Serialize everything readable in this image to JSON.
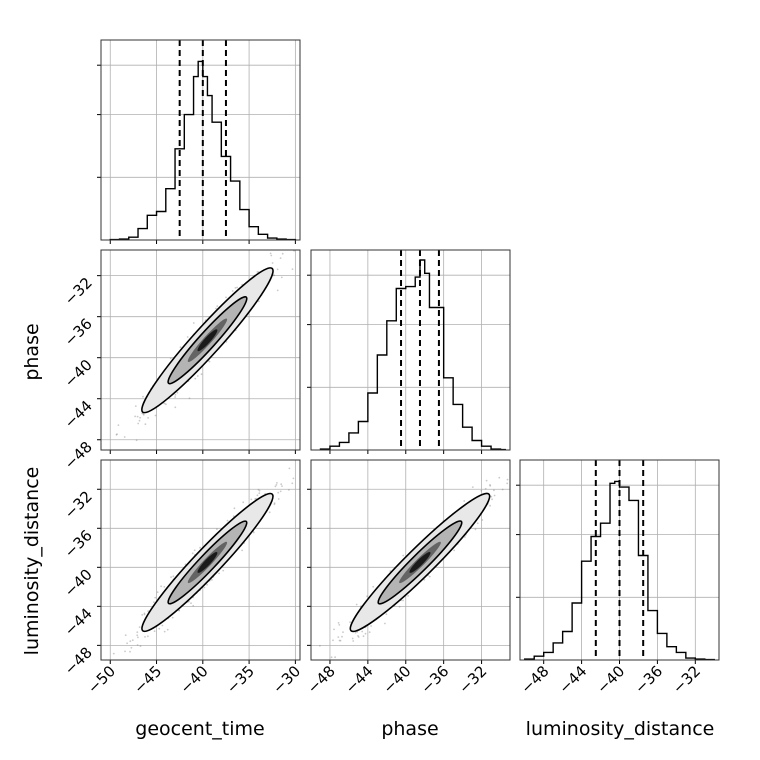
{
  "figure": {
    "type": "corner-plot",
    "colors": {
      "line": "#000000",
      "grid": "#b0b0b0",
      "scatter": "#8a8a8a",
      "contour_fill_levels": [
        "#e8e8e8",
        "#b4b4b4",
        "#646464",
        "#1a1a1a"
      ]
    }
  },
  "chart_data": {
    "type": "corner",
    "parameters": [
      "geocent_time",
      "phase",
      "luminosity_distance"
    ],
    "axes": {
      "geocent_time": {
        "xlim": [
          -51,
          -29.5
        ],
        "ticks": [
          -50,
          -45,
          -40,
          -35,
          -30
        ],
        "tick_labels": [
          "−50",
          "−45",
          "−40",
          "−35",
          "−30"
        ]
      },
      "phase": {
        "xlim": [
          -50,
          -29
        ],
        "ticks": [
          -48,
          -44,
          -40,
          -36,
          -32
        ],
        "tick_labels": [
          "−48",
          "−44",
          "−40",
          "−36",
          "−32"
        ],
        "ylim": [
          -49,
          -29.5
        ]
      },
      "luminosity_distance": {
        "xlim": [
          -50.5,
          -29.5
        ],
        "ticks": [
          -48,
          -44,
          -40,
          -36,
          -32
        ],
        "tick_labels": [
          "−48",
          "−44",
          "−40",
          "−36",
          "−32"
        ],
        "ylim": [
          -49.5,
          -29
        ]
      }
    },
    "histograms": [
      {
        "parameter": "geocent_time",
        "bin_edges": [
          -50,
          -49,
          -48,
          -47,
          -46,
          -45,
          -44,
          -43,
          -42,
          -41,
          -40.5,
          -40,
          -39.5,
          -39,
          -38,
          -37,
          -36,
          -35,
          -34,
          -33,
          -32,
          -31,
          -30
        ],
        "counts": [
          0.002,
          0.005,
          0.015,
          0.06,
          0.13,
          0.15,
          0.27,
          0.48,
          0.66,
          0.86,
          0.94,
          0.86,
          0.76,
          0.62,
          0.44,
          0.31,
          0.16,
          0.07,
          0.03,
          0.01,
          0.005,
          0.002
        ],
        "quantiles": [
          -42.5,
          -40,
          -37.5
        ]
      },
      {
        "parameter": "phase",
        "bin_edges": [
          -49,
          -48,
          -47,
          -46,
          -45,
          -44,
          -43,
          -42,
          -41,
          -40,
          -39,
          -38.5,
          -38,
          -37.5,
          -36,
          -35,
          -34,
          -33,
          -32,
          -31,
          -30,
          -29.5
        ],
        "counts": [
          0.005,
          0.02,
          0.04,
          0.09,
          0.15,
          0.3,
          0.5,
          0.68,
          0.85,
          0.86,
          0.91,
          1.0,
          0.93,
          0.75,
          0.38,
          0.24,
          0.12,
          0.05,
          0.02,
          0.005,
          0.002
        ],
        "quantiles": [
          -40.5,
          -38.5,
          -36.5
        ]
      },
      {
        "parameter": "luminosity_distance",
        "bin_edges": [
          -50,
          -49,
          -48,
          -47,
          -46,
          -45,
          -44,
          -43,
          -42,
          -41,
          -40.5,
          -40,
          -39,
          -38,
          -37,
          -36,
          -35,
          -34,
          -33,
          -32,
          -31,
          -30
        ],
        "counts": [
          0.005,
          0.02,
          0.04,
          0.09,
          0.15,
          0.3,
          0.52,
          0.65,
          0.72,
          0.93,
          0.94,
          0.91,
          0.84,
          0.55,
          0.26,
          0.14,
          0.07,
          0.04,
          0.01,
          0.005,
          0.002
        ],
        "quantiles": [
          -42.5,
          -40,
          -37.5
        ]
      }
    ],
    "pairs": [
      {
        "x": "geocent_time",
        "y": "phase",
        "center": [
          -39.5,
          -38.3
        ],
        "sx": 2.5,
        "sy": 2.5,
        "rho": 0.96
      },
      {
        "x": "geocent_time",
        "y": "luminosity_distance",
        "center": [
          -39.5,
          -39.5
        ],
        "sx": 2.5,
        "sy": 2.5,
        "rho": 0.96
      },
      {
        "x": "phase",
        "y": "luminosity_distance",
        "center": [
          -38.5,
          -39.5
        ],
        "sx": 2.6,
        "sy": 2.5,
        "rho": 0.96
      }
    ]
  },
  "labels": {
    "geocent_time": "geocent_time",
    "phase": "phase",
    "luminosity_distance": "luminosity_distance"
  }
}
